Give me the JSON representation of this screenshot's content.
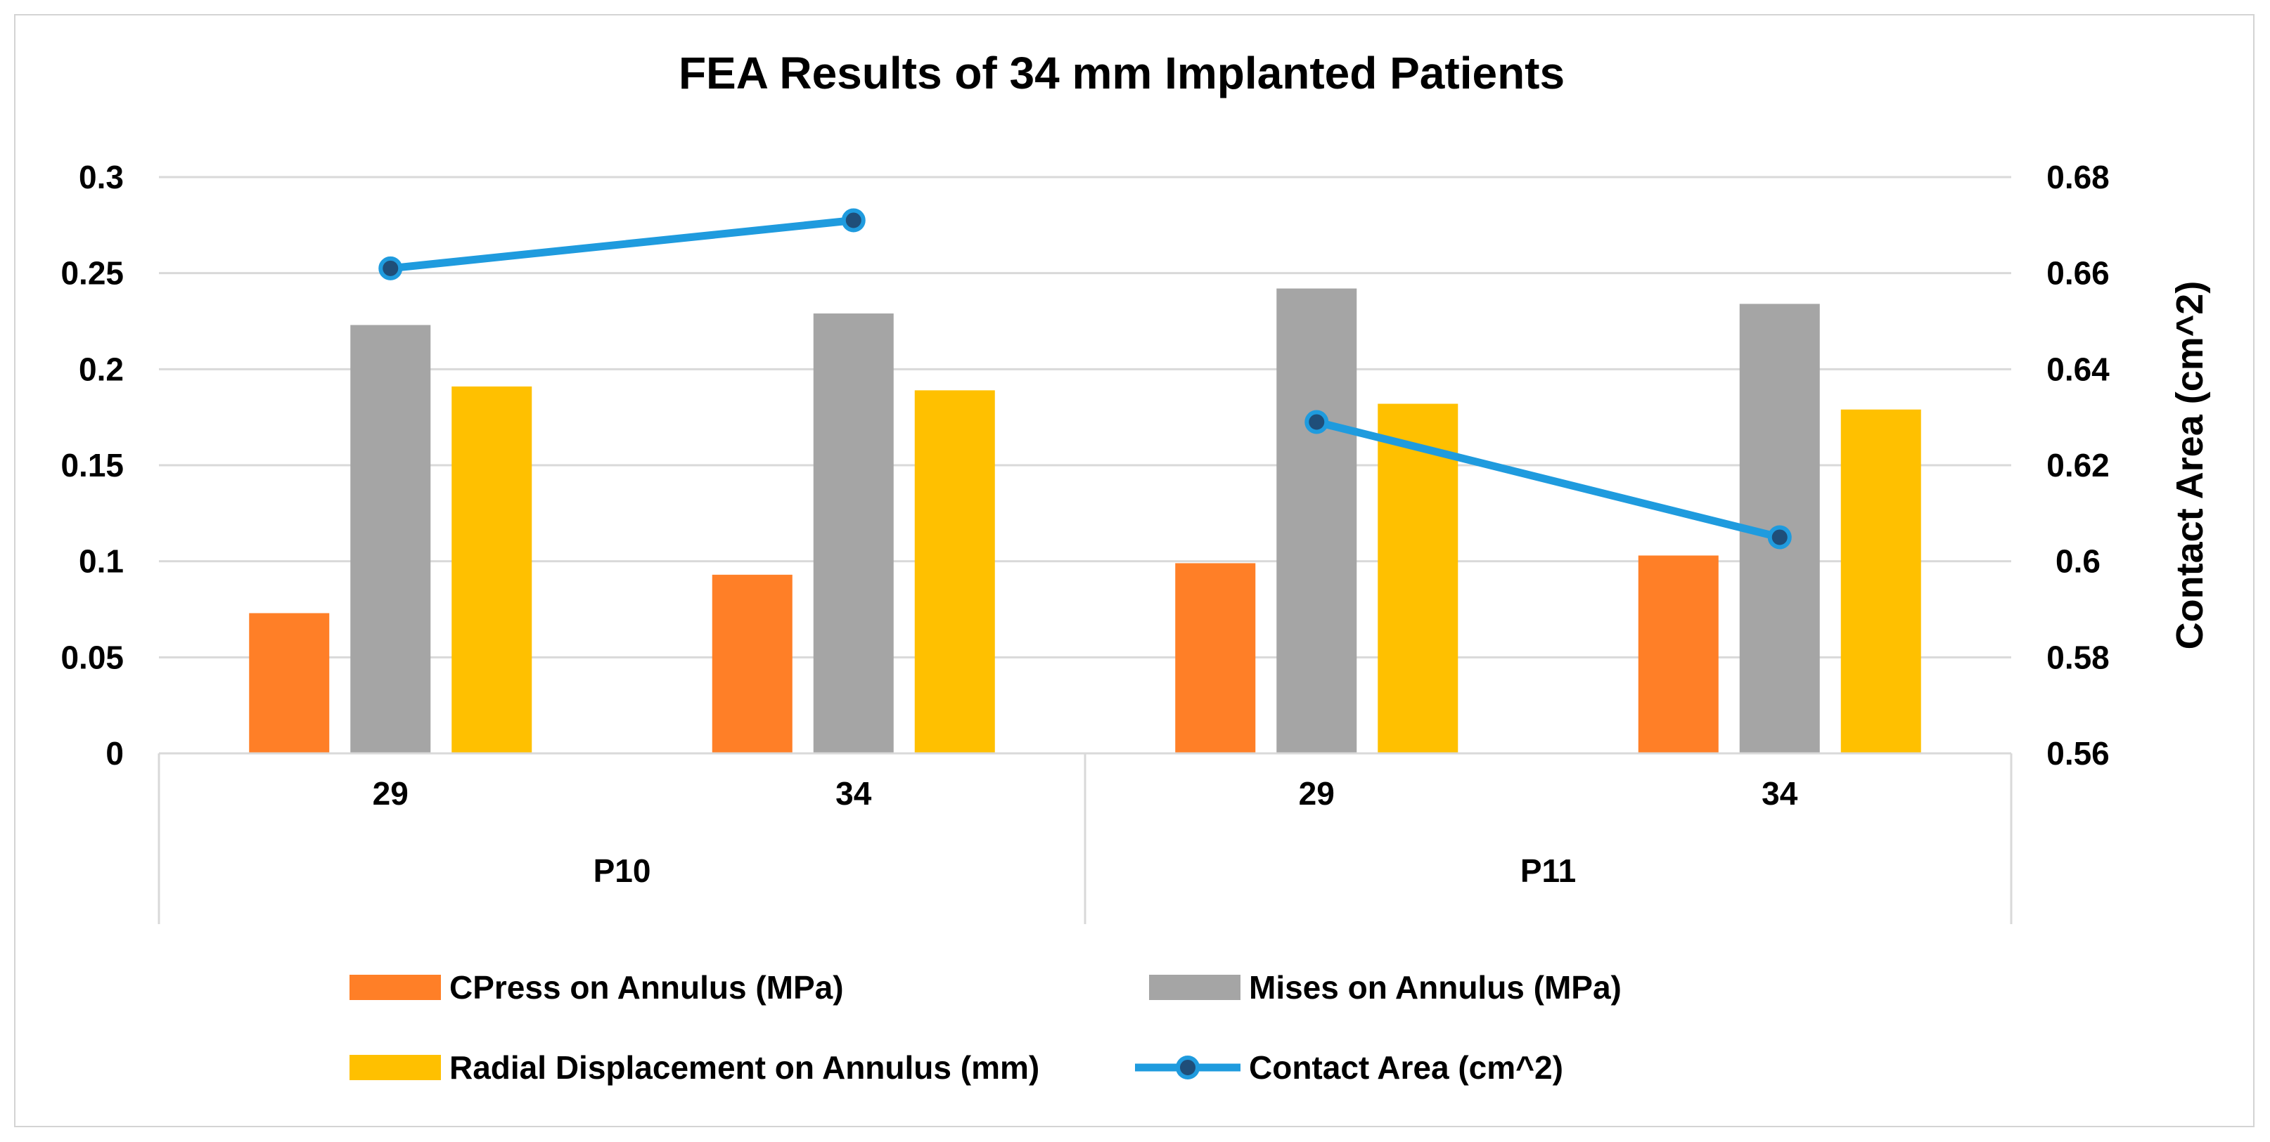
{
  "colors": {
    "series_cpress": "#FF7F27",
    "series_mises": "#A5A5A5",
    "series_radial": "#FFC000",
    "series_contact": "#1F9BDE",
    "marker_fill": "#1F4E79",
    "gridline": "#D9D9D9",
    "frame": "#D4D4D4"
  },
  "chart_data": {
    "type": "bar",
    "title": "FEA Results of 34 mm Implanted Patients",
    "categories": [
      "29",
      "34",
      "29",
      "34"
    ],
    "groups": [
      {
        "label": "P10",
        "categories": [
          "29",
          "34"
        ]
      },
      {
        "label": "P11",
        "categories": [
          "29",
          "34"
        ]
      }
    ],
    "y_left": {
      "ylim": [
        0,
        0.3
      ],
      "ticks": [
        "0",
        "0.05",
        "0.1",
        "0.15",
        "0.2",
        "0.25",
        "0.3"
      ],
      "ylabel": ""
    },
    "y_right": {
      "ylim": [
        0.56,
        0.68
      ],
      "ticks": [
        "0.56",
        "0.58",
        "0.6",
        "0.62",
        "0.64",
        "0.66",
        "0.68"
      ],
      "ylabel": "Contact Area (cm^2)"
    },
    "grid": true,
    "legend_position": "bottom",
    "series": [
      {
        "name": "CPress on Annulus (MPa)",
        "type": "bar",
        "axis": "left",
        "color_key": "series_cpress",
        "values": [
          0.073,
          0.093,
          0.099,
          0.103
        ]
      },
      {
        "name": "Mises on Annulus (MPa)",
        "type": "bar",
        "axis": "left",
        "color_key": "series_mises",
        "values": [
          0.223,
          0.229,
          0.242,
          0.234
        ]
      },
      {
        "name": "Radial Displacement on Annulus (mm)",
        "type": "bar",
        "axis": "left",
        "color_key": "series_radial",
        "values": [
          0.191,
          0.189,
          0.182,
          0.179
        ]
      },
      {
        "name": "Contact Area (cm^2)",
        "type": "line",
        "axis": "right",
        "color_key": "series_contact",
        "segments": [
          [
            0,
            1
          ],
          [
            2,
            3
          ]
        ],
        "values": [
          0.661,
          0.671,
          0.629,
          0.605
        ]
      }
    ]
  }
}
